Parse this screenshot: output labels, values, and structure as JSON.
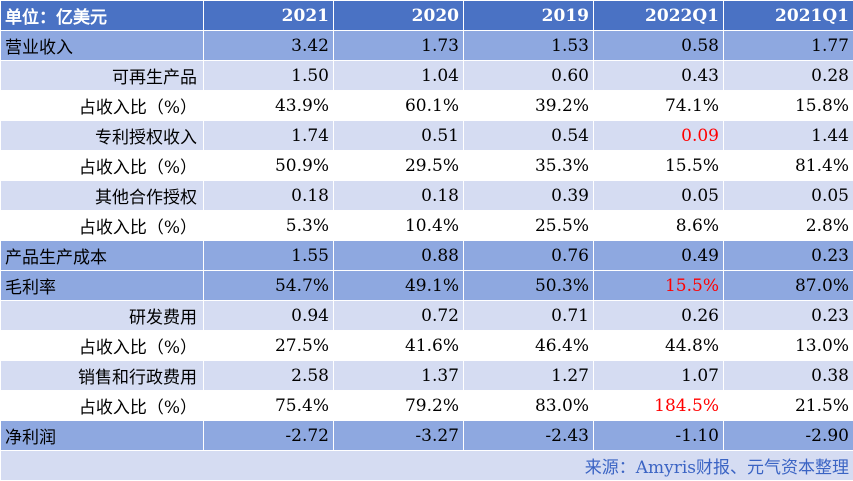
{
  "header": [
    "单位：亿美元",
    "2021",
    "2020",
    "2019",
    "2022Q1",
    "2021Q1"
  ],
  "rows": [
    {
      "label": "营业收入",
      "values": [
        "3.42",
        "1.73",
        "1.53",
        "0.58",
        "1.77"
      ],
      "style": "major",
      "indent": 0,
      "red": []
    },
    {
      "label": "可再生产品",
      "values": [
        "1.50",
        "1.04",
        "0.60",
        "0.43",
        "0.28"
      ],
      "style": "sub",
      "indent": 1,
      "red": []
    },
    {
      "label": "占收入比（%）",
      "values": [
        "43.9%",
        "60.1%",
        "39.2%",
        "74.1%",
        "15.8%"
      ],
      "style": "pct",
      "indent": 1,
      "red": []
    },
    {
      "label": "专利授权收入",
      "values": [
        "1.74",
        "0.51",
        "0.54",
        "0.09",
        "1.44"
      ],
      "style": "sub",
      "indent": 1,
      "red": [
        3
      ]
    },
    {
      "label": "占收入比（%）",
      "values": [
        "50.9%",
        "29.5%",
        "35.3%",
        "15.5%",
        "81.4%"
      ],
      "style": "pct",
      "indent": 1,
      "red": []
    },
    {
      "label": "其他合作授权",
      "values": [
        "0.18",
        "0.18",
        "0.39",
        "0.05",
        "0.05"
      ],
      "style": "sub",
      "indent": 1,
      "red": []
    },
    {
      "label": "占收入比（%）",
      "values": [
        "5.3%",
        "10.4%",
        "25.5%",
        "8.6%",
        "2.8%"
      ],
      "style": "pct",
      "indent": 1,
      "red": []
    },
    {
      "label": "产品生产成本",
      "values": [
        "1.55",
        "0.88",
        "0.76",
        "0.49",
        "0.23"
      ],
      "style": "major",
      "indent": 0,
      "red": []
    },
    {
      "label": "毛利率",
      "values": [
        "54.7%",
        "49.1%",
        "50.3%",
        "15.5%",
        "87.0%"
      ],
      "style": "major",
      "indent": 0,
      "red": [
        3
      ]
    },
    {
      "label": "研发费用",
      "values": [
        "0.94",
        "0.72",
        "0.71",
        "0.26",
        "0.23"
      ],
      "style": "sub",
      "indent": 1,
      "red": []
    },
    {
      "label": "占收入比（%）",
      "values": [
        "27.5%",
        "41.6%",
        "46.4%",
        "44.8%",
        "13.0%"
      ],
      "style": "pct",
      "indent": 1,
      "red": []
    },
    {
      "label": "销售和行政费用",
      "values": [
        "2.58",
        "1.37",
        "1.27",
        "1.07",
        "0.38"
      ],
      "style": "sub",
      "indent": 1,
      "red": []
    },
    {
      "label": "占收入比（%）",
      "values": [
        "75.4%",
        "79.2%",
        "83.0%",
        "184.5%",
        "21.5%"
      ],
      "style": "pct",
      "indent": 1,
      "red": [
        3
      ]
    },
    {
      "label": "净利润",
      "values": [
        "-2.72",
        "-3.27",
        "-2.43",
        "-1.10",
        "-2.90"
      ],
      "style": "major",
      "indent": 0,
      "red": []
    }
  ],
  "source": "来源：Amyris财报、元气资本整理",
  "colors": {
    "header_bg": "#4a72c4",
    "major_bg": "#8ea8e0",
    "sub_bg": "#d5dcf2",
    "highlight": "#ff0000",
    "source_text": "#3b64c4"
  }
}
